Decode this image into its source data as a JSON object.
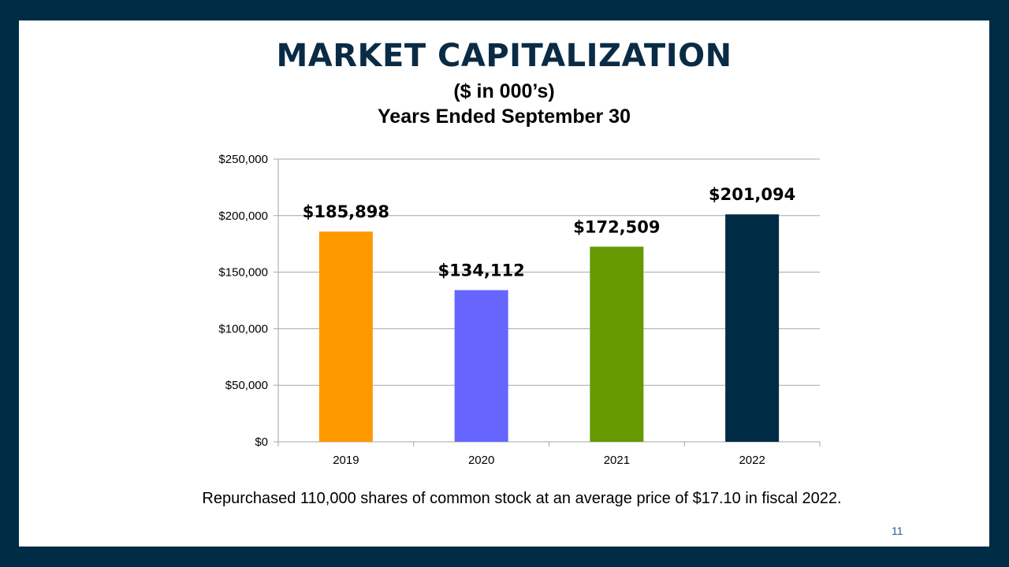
{
  "slide": {
    "title": "MARKET CAPITALIZATION",
    "subtitle_line1": "($ in 000’s)",
    "subtitle_line2": "Years Ended September 30",
    "footnote": "Repurchased 110,000 shares of common stock at an average price of $17.10 in fiscal 2022.",
    "page_number": "11"
  },
  "colors": {
    "frame": "#002B45",
    "title": "#0A2B45",
    "page_number": "#2E5A8A",
    "grid": "#A6A6A6"
  },
  "chart_data": {
    "type": "bar",
    "categories": [
      "2019",
      "2020",
      "2021",
      "2022"
    ],
    "values": [
      185898,
      134112,
      172509,
      201094
    ],
    "data_labels": [
      "$185,898",
      "$134,112",
      "$172,509",
      "$201,094"
    ],
    "bar_colors": [
      "#FF9900",
      "#6666FF",
      "#669900",
      "#002B45"
    ],
    "ylim": [
      0,
      250000
    ],
    "y_ticks": [
      0,
      50000,
      100000,
      150000,
      200000,
      250000
    ],
    "y_tick_labels": [
      "$0",
      "$50,000",
      "$100,000",
      "$150,000",
      "$200,000",
      "$250,000"
    ],
    "grid": true,
    "legend": false
  }
}
